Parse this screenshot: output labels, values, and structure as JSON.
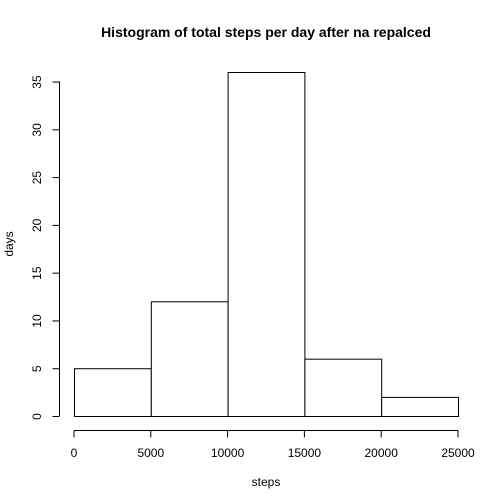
{
  "chart_data": {
    "type": "bar",
    "title": "Histogram of total steps per day after na repalced",
    "xlabel": "steps",
    "ylabel": "days",
    "bins": [
      {
        "from": 0,
        "to": 5000,
        "count": 5
      },
      {
        "from": 5000,
        "to": 10000,
        "count": 12
      },
      {
        "from": 10000,
        "to": 15000,
        "count": 36
      },
      {
        "from": 15000,
        "to": 20000,
        "count": 6
      },
      {
        "from": 20000,
        "to": 25000,
        "count": 2
      }
    ],
    "xlim": [
      0,
      25000
    ],
    "ylim": [
      0,
      36
    ],
    "x_ticks": [
      0,
      5000,
      10000,
      15000,
      20000,
      25000
    ],
    "y_ticks": [
      0,
      5,
      10,
      15,
      20,
      25,
      30,
      35
    ],
    "grid": false,
    "legend": "none",
    "colors": {
      "bar_fill": "#ffffff",
      "bar_stroke": "#000000",
      "axis": "#000000"
    }
  }
}
